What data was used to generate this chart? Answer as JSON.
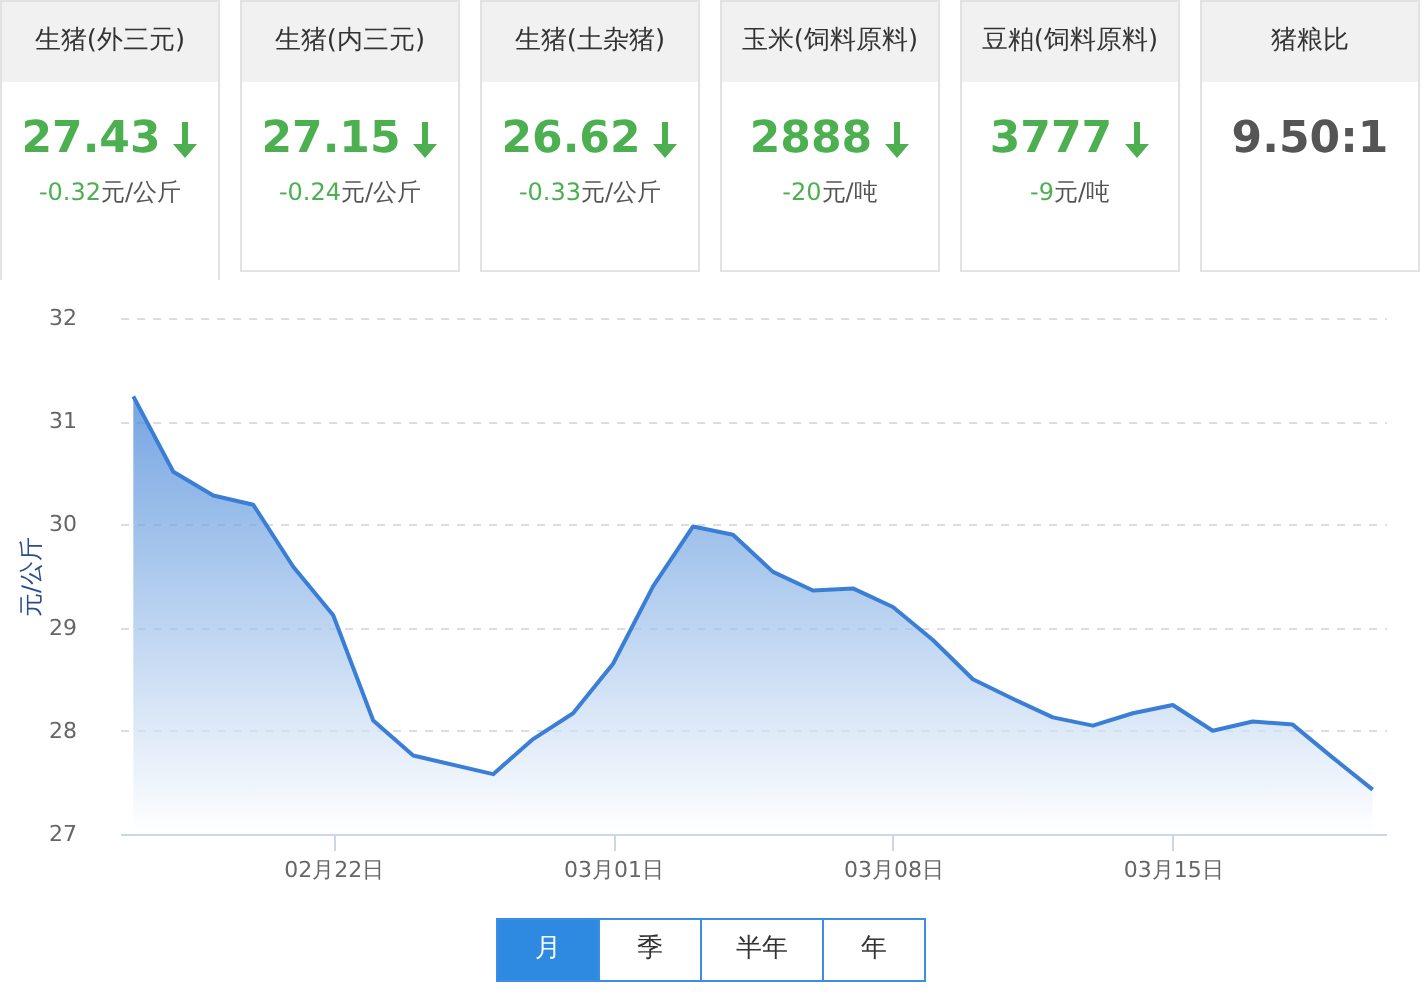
{
  "chart_data": [
    {
      "type": "other",
      "categories": [
        "生猪(外三元)",
        "生猪(内三元)",
        "生猪(土杂猪)",
        "玉米(饲料原料)",
        "豆粕(饲料原料)",
        "猪粮比"
      ],
      "value_labels": [
        "27.43",
        "27.15",
        "26.62",
        "2888",
        "3777",
        "9.50:1"
      ],
      "annotations": [
        "-0.32元/公斤",
        "-0.24元/公斤",
        "-0.33元/公斤",
        "-20元/吨",
        "-9元/吨"
      ]
    },
    {
      "type": "area",
      "ylabel": "元/公斤",
      "grid": "y",
      "x": [
        "--02-17",
        "--02-18",
        "--02-19",
        "--02-20",
        "--02-21",
        "--02-22",
        "--02-23",
        "--02-24",
        "--02-26",
        "--02-27",
        "--02-28",
        "--03-01",
        "--03-02",
        "--03-03",
        "--03-04",
        "--03-05",
        "--03-06",
        "--03-07",
        "--03-08",
        "--03-09",
        "--03-10",
        "--03-11",
        "--03-12",
        "--03-13",
        "--03-14",
        "--03-15",
        "--03-16",
        "--03-17",
        "--03-18",
        "--03-19",
        "--03-20"
      ],
      "series": [
        {
          "color": "#3a7fd5",
          "values": [
            31.24,
            30.51,
            30.28,
            30.19,
            29.59,
            29.12,
            28.1,
            27.76,
            27.58,
            27.92,
            28.17,
            28.65,
            29.4,
            29.98,
            29.9,
            29.54,
            29.36,
            29.38,
            29.2,
            28.88,
            28.5,
            28.31,
            28.13,
            28.05,
            28.17,
            28.25,
            28.0,
            28.09,
            28.06,
            27.74,
            27.43
          ]
        }
      ],
      "xlim": [
        "--02-16T16:00",
        "--03-20T08:00"
      ],
      "xticks": [
        {
          "value": "--02-22",
          "label": "02月22日"
        },
        {
          "value": "--03-01",
          "label": "03月01日"
        },
        {
          "value": "--03-08",
          "label": "03月08日"
        },
        {
          "value": "--03-15",
          "label": "03月15日"
        }
      ],
      "ylim": [
        27,
        32
      ],
      "yticks": [
        27,
        28,
        29,
        30,
        31,
        32
      ],
      "annotations": [
        "月",
        "季",
        "半年",
        "年"
      ]
    }
  ]
}
